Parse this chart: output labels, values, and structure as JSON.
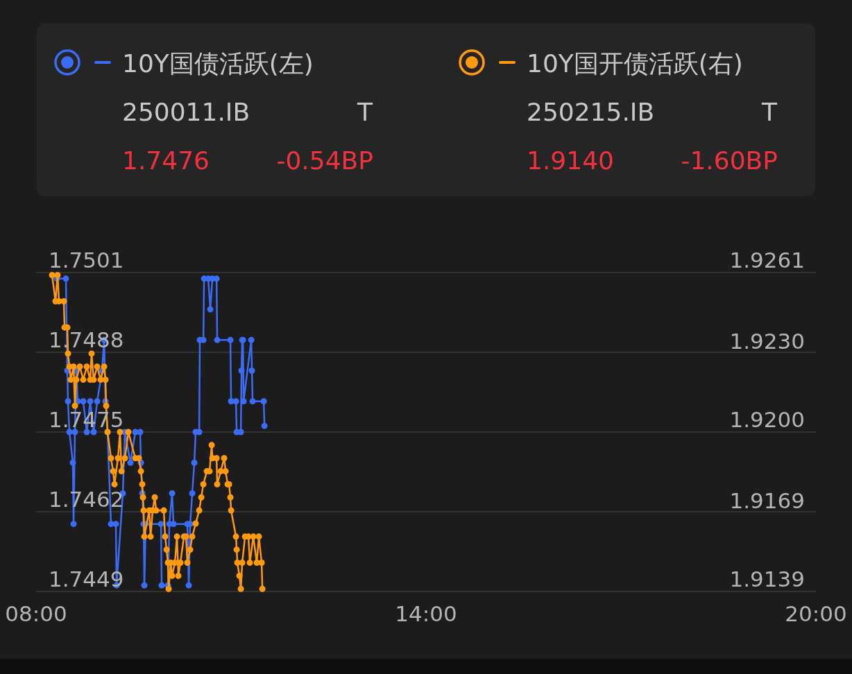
{
  "chart_data": {
    "type": "line",
    "legend": "top",
    "grid": "y",
    "marker": "circle",
    "line_style": "solid",
    "xlim": [
      8,
      20
    ],
    "xticks": [
      {
        "value": 8,
        "label": "08:00"
      },
      {
        "value": 14,
        "label": "14:00"
      },
      {
        "value": 20,
        "label": "20:00"
      }
    ],
    "ylim": [
      1.7449,
      1.7501
    ],
    "yticks": [
      1.7449,
      1.7462,
      1.7475,
      1.7488,
      1.7501
    ],
    "y2lim": [
      1.9139,
      1.9261
    ],
    "y2ticks": [
      1.9139,
      1.9169,
      {
        "value": 1.92,
        "label": "1.9200"
      },
      {
        "value": 1.923,
        "label": "1.9230"
      },
      1.9261
    ],
    "annotations": [
      "250011.IB",
      "T",
      "1.7476",
      "-0.54BP",
      "250215.IB",
      "T",
      "1.9140",
      "-1.60BP"
    ],
    "series": [
      {
        "name": "10Y国债活跃(左)",
        "color": "#3b6cf6",
        "x": [
          8.32,
          8.459,
          8.481,
          8.491,
          8.513,
          8.566,
          8.577,
          8.598,
          8.619,
          8.641,
          8.726,
          8.78,
          8.833,
          8.886,
          8.94,
          9.015,
          9.047,
          9.068,
          9.1,
          9.153,
          9.228,
          9.239,
          9.335,
          9.367,
          9.452,
          9.527,
          9.602,
          9.613,
          9.634,
          9.655,
          9.666,
          9.687,
          9.922,
          9.933,
          10.029,
          10.051,
          10.093,
          10.115,
          10.328,
          10.35,
          10.371,
          10.403,
          10.435,
          10.456,
          10.51,
          10.52,
          10.574,
          10.585,
          10.649,
          10.681,
          10.713,
          10.777,
          10.787,
          10.99,
          11.001,
          11.076,
          11.087,
          11.151,
          11.161,
          11.172,
          11.183,
          11.193,
          11.311,
          11.321,
          11.332,
          11.503,
          11.514
        ],
        "values": [
          1.75,
          1.75,
          1.7485,
          1.748,
          1.7475,
          1.747,
          1.746,
          1.7475,
          1.7485,
          1.748,
          1.748,
          1.7475,
          1.748,
          1.7475,
          1.748,
          1.7485,
          1.749,
          1.748,
          1.7475,
          1.746,
          1.746,
          1.745,
          1.7465,
          1.7475,
          1.747,
          1.7475,
          1.7475,
          1.747,
          1.7465,
          1.746,
          1.745,
          1.746,
          1.746,
          1.745,
          1.745,
          1.746,
          1.7465,
          1.746,
          1.746,
          1.745,
          1.746,
          1.7465,
          1.747,
          1.7475,
          1.7475,
          1.749,
          1.749,
          1.75,
          1.75,
          1.7495,
          1.75,
          1.75,
          1.749,
          1.749,
          1.748,
          1.748,
          1.7475,
          1.7475,
          1.7485,
          1.749,
          1.749,
          1.748,
          1.749,
          1.7485,
          1.748,
          1.748,
          1.7476
        ]
      },
      {
        "name": "10Y国开债活跃(右)",
        "color": "#ff9a0e",
        "axis": "y2",
        "x": [
          8.246,
          8.299,
          8.331,
          8.352,
          8.427,
          8.438,
          8.481,
          8.491,
          8.513,
          8.534,
          8.577,
          8.598,
          8.619,
          8.673,
          8.726,
          8.78,
          8.833,
          8.854,
          8.886,
          8.94,
          8.993,
          9.047,
          9.068,
          9.079,
          9.1,
          9.153,
          9.185,
          9.207,
          9.26,
          9.292,
          9.314,
          9.367,
          9.42,
          9.527,
          9.581,
          9.613,
          9.634,
          9.645,
          9.655,
          9.666,
          9.741,
          9.762,
          9.794,
          9.826,
          9.848,
          9.965,
          9.986,
          10.008,
          10.029,
          10.04,
          10.072,
          10.093,
          10.136,
          10.168,
          10.189,
          10.221,
          10.275,
          10.307,
          10.328,
          10.371,
          10.403,
          10.456,
          10.51,
          10.542,
          10.574,
          10.627,
          10.67,
          10.702,
          10.713,
          10.777,
          10.787,
          10.841,
          10.894,
          10.916,
          10.948,
          10.969,
          10.99,
          11.001,
          11.076,
          11.087,
          11.097,
          11.129,
          11.151,
          11.172,
          11.215,
          11.268,
          11.289,
          11.343,
          11.396,
          11.428,
          11.471,
          11.482
        ],
        "values": [
          1.926,
          1.925,
          1.926,
          1.925,
          1.925,
          1.924,
          1.924,
          1.923,
          1.9225,
          1.922,
          1.9225,
          1.921,
          1.922,
          1.9225,
          1.922,
          1.9225,
          1.922,
          1.923,
          1.922,
          1.9225,
          1.922,
          1.9225,
          1.922,
          1.921,
          1.92,
          1.919,
          1.9185,
          1.918,
          1.919,
          1.92,
          1.9185,
          1.919,
          1.92,
          1.919,
          1.919,
          1.9185,
          1.918,
          1.9175,
          1.917,
          1.916,
          1.917,
          1.916,
          1.917,
          1.9175,
          1.917,
          1.917,
          1.916,
          1.9155,
          1.915,
          1.914,
          1.915,
          1.9145,
          1.915,
          1.916,
          1.9145,
          1.915,
          1.916,
          1.916,
          1.915,
          1.9155,
          1.916,
          1.9165,
          1.917,
          1.9175,
          1.918,
          1.9185,
          1.9185,
          1.9195,
          1.919,
          1.919,
          1.918,
          1.9185,
          1.919,
          1.9185,
          1.918,
          1.918,
          1.9175,
          1.917,
          1.916,
          1.9155,
          1.915,
          1.9145,
          1.914,
          1.915,
          1.916,
          1.916,
          1.915,
          1.916,
          1.915,
          1.916,
          1.915,
          1.914
        ]
      }
    ]
  }
}
